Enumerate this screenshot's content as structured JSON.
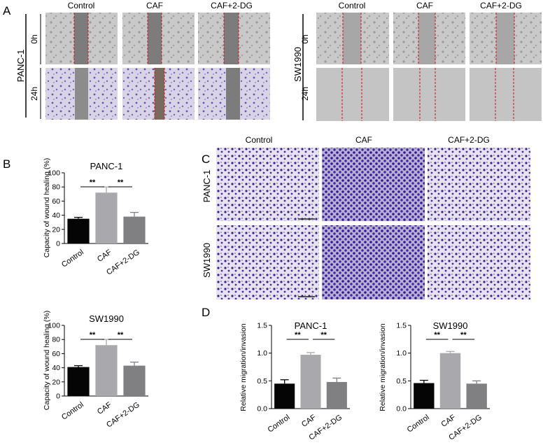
{
  "colors": {
    "control": "#050505",
    "caf": "#a9a9ad",
    "caf2dg": "#808082",
    "scratch_line": "#d0101a",
    "stain": "#3c1f95"
  },
  "panel_letters": [
    "A",
    "B",
    "C",
    "D"
  ],
  "panel_a": {
    "groups": [
      "Control",
      "CAF",
      "CAF+2-DG"
    ],
    "blocks": [
      {
        "cell_line": "PANC-1",
        "times": [
          "0h",
          "24h"
        ]
      },
      {
        "cell_line": "SW1990",
        "times": [
          "0h",
          "24h"
        ]
      }
    ]
  },
  "panel_c": {
    "groups": [
      "Control",
      "CAF",
      "CAF+2-DG"
    ],
    "rows": [
      "PANC-1",
      "SW1990"
    ]
  },
  "chart_data": [
    {
      "type": "bar",
      "panel": "B",
      "title": "PANC-1",
      "categories": [
        "Control",
        "CAF",
        "CAF+2-DG"
      ],
      "values": [
        35,
        72,
        38
      ],
      "errors": [
        2,
        8,
        6
      ],
      "ylabel": "Capacity of wound healing (%)",
      "ylim": [
        0,
        100
      ],
      "yticks": [
        "0",
        "20",
        "40",
        "60",
        "80",
        "100"
      ],
      "ytick_values": [
        0,
        20,
        40,
        60,
        80,
        100
      ],
      "significance": [
        {
          "from": 0,
          "to": 1,
          "label": "**"
        },
        {
          "from": 1,
          "to": 2,
          "label": "**"
        }
      ]
    },
    {
      "type": "bar",
      "panel": "B",
      "title": "SW1990",
      "categories": [
        "Control",
        "CAF",
        "CAF+2-DG"
      ],
      "values": [
        41,
        72,
        43
      ],
      "errors": [
        2,
        8,
        5
      ],
      "ylabel": "Capacity of wound healing (%)",
      "ylim": [
        0,
        100
      ],
      "yticks": [
        "0",
        "20",
        "40",
        "60",
        "80",
        "100"
      ],
      "ytick_values": [
        0,
        20,
        40,
        60,
        80,
        100
      ],
      "significance": [
        {
          "from": 0,
          "to": 1,
          "label": "**"
        },
        {
          "from": 1,
          "to": 2,
          "label": "**"
        }
      ]
    },
    {
      "type": "bar",
      "panel": "D",
      "title": "PANC-1",
      "categories": [
        "Control",
        "CAF",
        "CAF+2-DG"
      ],
      "values": [
        0.45,
        0.97,
        0.48
      ],
      "errors": [
        0.07,
        0.04,
        0.07
      ],
      "ylabel": "Relative migration/invasion",
      "ylim": [
        0,
        1.5
      ],
      "yticks": [
        "0.0",
        "0.5",
        "1.0",
        "1.5"
      ],
      "ytick_values": [
        0,
        0.5,
        1.0,
        1.5
      ],
      "significance": [
        {
          "from": 0,
          "to": 1,
          "label": "**"
        },
        {
          "from": 1,
          "to": 2,
          "label": "**"
        }
      ]
    },
    {
      "type": "bar",
      "panel": "D",
      "title": "SW1990",
      "categories": [
        "Control",
        "CAF",
        "CAF+2-DG"
      ],
      "values": [
        0.46,
        1.0,
        0.45
      ],
      "errors": [
        0.05,
        0.03,
        0.05
      ],
      "ylabel": "Relative migration/invasion",
      "ylim": [
        0,
        1.5
      ],
      "yticks": [
        "0.0",
        "0.5",
        "1.0",
        "1.5"
      ],
      "ytick_values": [
        0,
        0.5,
        1.0,
        1.5
      ],
      "significance": [
        {
          "from": 0,
          "to": 1,
          "label": "**"
        },
        {
          "from": 1,
          "to": 2,
          "label": "**"
        }
      ]
    }
  ]
}
